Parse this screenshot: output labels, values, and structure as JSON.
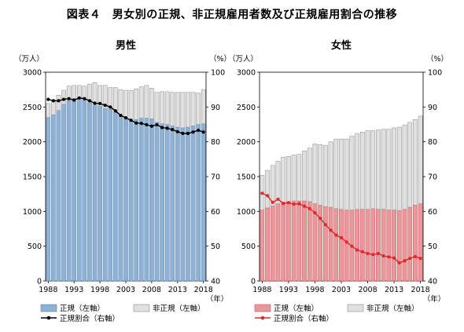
{
  "title": "図表４　男女別の正規、非正規雇用者数及び正規雇用割合の推移",
  "units": {
    "left": "（万人）",
    "right": "（%）",
    "year": "（年）"
  },
  "legend": {
    "regular": "正規（左軸）",
    "nonregular": "非正規（左軸）",
    "ratio": "正規割合（右軸）"
  },
  "colors": {
    "male_regular": "#8fb2d4",
    "male_regular_stroke": "#5b86b3",
    "female_regular": "#e8979a",
    "female_regular_stroke": "#c9575b",
    "nonregular": "#e0e0e0",
    "nonregular_stroke": "#8c8c8c",
    "male_line": "#000000",
    "female_line": "#e02a2a"
  },
  "chart_data": [
    {
      "type": "bar",
      "title": "男性",
      "stacked": true,
      "categories": [
        "1988",
        "1989",
        "1990",
        "1991",
        "1992",
        "1993",
        "1994",
        "1995",
        "1996",
        "1997",
        "1998",
        "1999",
        "2000",
        "2001",
        "2002",
        "2003",
        "2004",
        "2005",
        "2006",
        "2007",
        "2008",
        "2009",
        "2010",
        "2011",
        "2012",
        "2013",
        "2014",
        "2015",
        "2016",
        "2017",
        "2018"
      ],
      "x_tick_labels": [
        "1988",
        "1993",
        "1998",
        "2003",
        "2008",
        "2013",
        "2018"
      ],
      "y_left_ticks": [
        "0",
        "500",
        "1000",
        "1500",
        "2000",
        "2500",
        "3000"
      ],
      "y_right_ticks": [
        "40",
        "50",
        "60",
        "70",
        "80",
        "90",
        "100"
      ],
      "ylim_left": [
        0,
        3000
      ],
      "ylim_right": [
        40,
        100
      ],
      "series": [
        {
          "name": "正規（左軸）",
          "axis": "left",
          "values": [
            2350,
            2390,
            2450,
            2540,
            2590,
            2620,
            2630,
            2600,
            2560,
            2530,
            2510,
            2480,
            2470,
            2420,
            2370,
            2330,
            2310,
            2320,
            2340,
            2340,
            2330,
            2280,
            2260,
            2250,
            2230,
            2210,
            2200,
            2210,
            2230,
            2250,
            2260
          ]
        },
        {
          "name": "非正規（左軸）",
          "axis": "left",
          "values": [
            200,
            210,
            220,
            200,
            210,
            190,
            180,
            200,
            270,
            320,
            300,
            330,
            310,
            360,
            380,
            410,
            430,
            440,
            450,
            470,
            440,
            430,
            460,
            470,
            480,
            500,
            510,
            500,
            480,
            450,
            490
          ]
        },
        {
          "name": "正規割合（右軸）",
          "axis": "right",
          "type": "line",
          "values": [
            92.2,
            91.8,
            91.8,
            92.2,
            92.4,
            92.0,
            92.6,
            92.4,
            91.8,
            91.1,
            91.0,
            90.5,
            90.0,
            88.9,
            87.6,
            86.9,
            86.2,
            85.4,
            85.3,
            84.9,
            84.5,
            84.9,
            84.1,
            83.9,
            83.5,
            82.9,
            82.4,
            82.4,
            82.8,
            83.3,
            82.8
          ]
        }
      ]
    },
    {
      "type": "bar",
      "title": "女性",
      "stacked": true,
      "categories": [
        "1988",
        "1989",
        "1990",
        "1991",
        "1992",
        "1993",
        "1994",
        "1995",
        "1996",
        "1997",
        "1998",
        "1999",
        "2000",
        "2001",
        "2002",
        "2003",
        "2004",
        "2005",
        "2006",
        "2007",
        "2008",
        "2009",
        "2010",
        "2011",
        "2012",
        "2013",
        "2014",
        "2015",
        "2016",
        "2017",
        "2018"
      ],
      "x_tick_labels": [
        "1988",
        "1993",
        "1998",
        "2003",
        "2008",
        "2013",
        "2018"
      ],
      "y_left_ticks": [
        "0",
        "500",
        "1000",
        "1500",
        "2000",
        "2500",
        "3000"
      ],
      "y_right_ticks": [
        "40",
        "50",
        "60",
        "70",
        "80",
        "90",
        "100"
      ],
      "ylim_left": [
        0,
        3000
      ],
      "ylim_right": [
        40,
        100
      ],
      "series": [
        {
          "name": "正規（左軸）",
          "axis": "left",
          "values": [
            1020,
            1050,
            1080,
            1110,
            1130,
            1140,
            1150,
            1150,
            1150,
            1140,
            1110,
            1090,
            1070,
            1060,
            1040,
            1030,
            1020,
            1020,
            1030,
            1030,
            1030,
            1040,
            1030,
            1030,
            1020,
            1020,
            1010,
            1030,
            1060,
            1090,
            1110
          ]
        },
        {
          "name": "非正規（左軸）",
          "axis": "left",
          "values": [
            500,
            540,
            580,
            610,
            650,
            650,
            660,
            670,
            720,
            770,
            860,
            870,
            880,
            940,
            1000,
            1010,
            1020,
            1060,
            1090,
            1110,
            1130,
            1120,
            1140,
            1150,
            1160,
            1180,
            1200,
            1210,
            1220,
            1230,
            1260
          ]
        },
        {
          "name": "正規割合（右軸）",
          "axis": "right",
          "type": "line",
          "values": [
            65.2,
            64.5,
            62.6,
            63.5,
            62.3,
            62.5,
            62.1,
            62.2,
            61.5,
            60.8,
            59.6,
            58.0,
            56.2,
            54.6,
            53.2,
            52.4,
            51.2,
            50.0,
            48.9,
            48.4,
            47.9,
            47.6,
            47.9,
            47.2,
            46.9,
            46.6,
            45.2,
            45.8,
            46.5,
            47.0,
            46.5
          ]
        }
      ]
    }
  ]
}
